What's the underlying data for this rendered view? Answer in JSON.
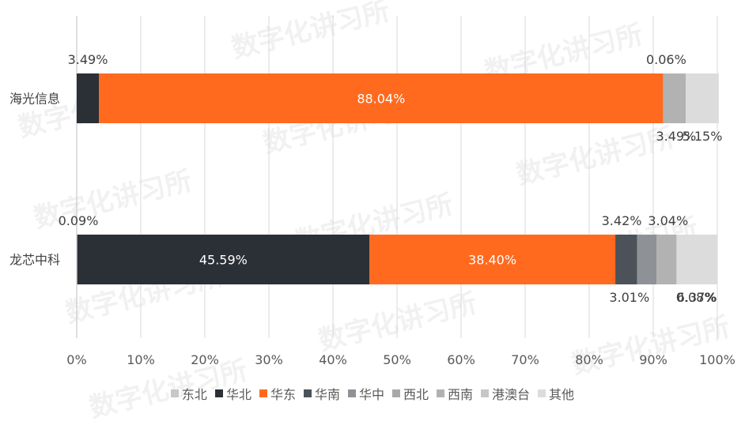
{
  "chart_data": {
    "type": "bar",
    "orientation": "horizontal",
    "stacked": true,
    "normalized_percent": true,
    "categories": [
      "海光信息",
      "龙芯中科"
    ],
    "xlim": [
      0,
      100
    ],
    "x_ticks": [
      "0%",
      "10%",
      "20%",
      "30%",
      "40%",
      "50%",
      "60%",
      "70%",
      "80%",
      "90%",
      "100%"
    ],
    "grid": "vertical",
    "legend_position": "bottom",
    "series": [
      {
        "name": "东北",
        "color": "#c8c8c8",
        "values": [
          0.0,
          0.09
        ],
        "labels": [
          "",
          "0.09%"
        ]
      },
      {
        "name": "华北",
        "color": "#2b2f36",
        "values": [
          3.49,
          45.59
        ],
        "labels": [
          "3.49%",
          "45.59%"
        ]
      },
      {
        "name": "华东",
        "color": "#ff6a1e",
        "values": [
          88.04,
          38.4
        ],
        "labels": [
          "88.04%",
          "38.40%"
        ]
      },
      {
        "name": "华南",
        "color": "#4b5259",
        "values": [
          0.0,
          3.42
        ],
        "labels": [
          "",
          "3.42%"
        ]
      },
      {
        "name": "华中",
        "color": "#8e9296",
        "values": [
          0.0,
          3.01
        ],
        "labels": [
          "",
          "3.01%"
        ]
      },
      {
        "name": "西北",
        "color": "#a9a9a9",
        "values": [
          0.06,
          0.08
        ],
        "labels": [
          "0.06%",
          "0.08%"
        ]
      },
      {
        "name": "西南",
        "color": "#b2b2b2",
        "values": [
          3.49,
          3.04
        ],
        "labels": [
          "3.49%",
          "3.04%"
        ]
      },
      {
        "name": "港澳台",
        "color": "#c6c6c6",
        "values": [
          0.0,
          0.0
        ],
        "labels": [
          "",
          ""
        ]
      },
      {
        "name": "其他",
        "color": "#dcdcdc",
        "values": [
          5.15,
          6.37
        ],
        "labels": [
          "5.15%",
          "6.37%"
        ]
      }
    ]
  },
  "watermark": "数字化讲习所"
}
